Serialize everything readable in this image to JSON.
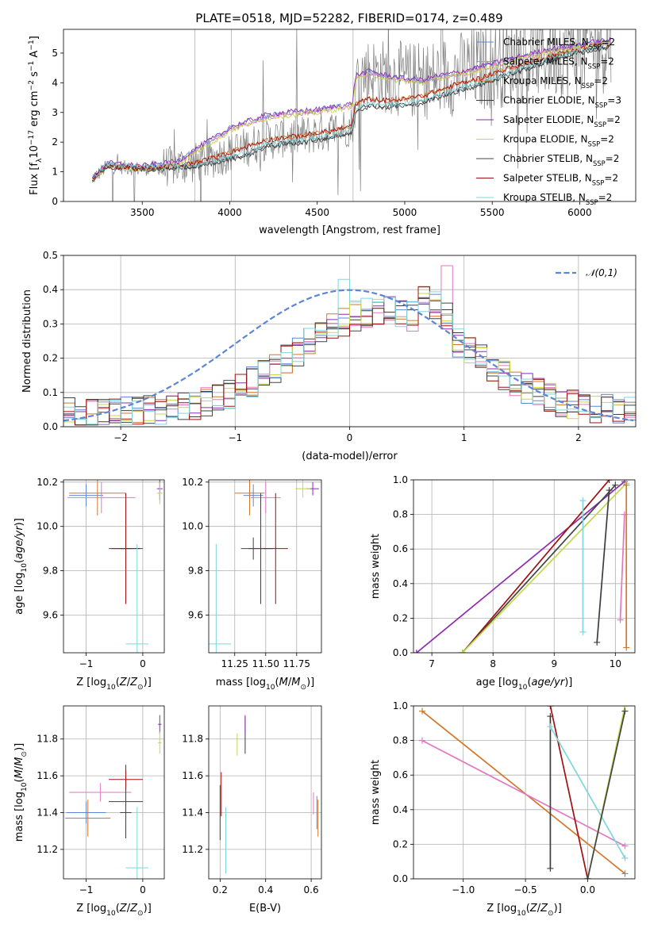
{
  "title": "PLATE=0518, MJD=52282, FIBERID=0174, z=0.489",
  "colors": {
    "chabrier_miles": "#5b86d6",
    "salpeter_miles": "#e377c2",
    "kroupa_miles": "#d2772c",
    "chabrier_elodie": "#3d3d3d",
    "salpeter_elodie": "#8e2bb0",
    "kroupa_elodie": "#c4d84a",
    "chabrier_stelib": "#444444",
    "salpeter_stelib": "#a01010",
    "kroupa_stelib": "#7fd6dc",
    "data": "#7f7f7f",
    "normal": "#5b86d6"
  },
  "chart_data": [
    {
      "id": "spectrum",
      "type": "line",
      "title": "PLATE=0518, MJD=52282, FIBERID=0174, z=0.489",
      "xlabel": "wavelength [Angstrom, rest frame]",
      "ylabel": "Flux [f_λ 10^-17 erg cm^-2 s^-1 A^-1]",
      "xlim": [
        3050,
        6320
      ],
      "ylim": [
        0,
        5.8
      ],
      "xticks": [
        3500,
        4000,
        4500,
        5000,
        5500,
        6000
      ],
      "yticks": [
        0,
        1,
        2,
        3,
        4,
        5
      ],
      "legend_position": "top-right",
      "legend": [
        "Chabrier MILES, N_SSP=2",
        "Salpeter MILES, N_SSP=2",
        "Kroupa MILES, N_SSP=2",
        "Chabrier ELODIE, N_SSP=3",
        "Salpeter ELODIE, N_SSP=2",
        "Kroupa ELODIE, N_SSP=2",
        "Chabrier STELIB, N_SSP=2",
        "Salpeter STELIB, N_SSP=2",
        "Kroupa STELIB, N_SSP=2"
      ],
      "model_high": {
        "x": [
          3215,
          3300,
          3500,
          3700,
          3800,
          3880,
          3960,
          4000,
          4100,
          4200,
          4300,
          4400,
          4500,
          4600,
          4700,
          4720,
          4800,
          4900,
          5000,
          5100,
          5200,
          5300,
          5400,
          5500,
          5600,
          5700,
          5800,
          5900,
          6000,
          6100,
          6180
        ],
        "y": [
          0.75,
          1.25,
          1.15,
          1.3,
          1.7,
          2.0,
          2.25,
          2.45,
          2.65,
          2.85,
          2.95,
          3.0,
          3.05,
          3.15,
          3.25,
          4.2,
          4.35,
          4.2,
          4.1,
          4.05,
          4.2,
          4.3,
          4.45,
          4.6,
          4.75,
          4.9,
          5.05,
          5.15,
          5.25,
          5.35,
          5.4
        ]
      },
      "model_low": {
        "x": [
          3215,
          3300,
          3500,
          3700,
          3800,
          3900,
          4000,
          4100,
          4200,
          4300,
          4400,
          4500,
          4600,
          4700,
          4720,
          4800,
          4900,
          5000,
          5100,
          5200,
          5300,
          5400,
          5500,
          5600,
          5700,
          5800,
          5900,
          6000,
          6100,
          6180
        ],
        "y": [
          0.75,
          1.2,
          1.1,
          1.15,
          1.2,
          1.3,
          1.45,
          1.6,
          1.85,
          1.95,
          2.0,
          2.1,
          2.2,
          2.35,
          3.1,
          3.25,
          3.2,
          3.25,
          3.35,
          3.55,
          3.75,
          3.9,
          4.1,
          4.3,
          4.5,
          4.7,
          4.9,
          5.05,
          5.15,
          5.25
        ]
      },
      "model_mid": {
        "x": [
          3215,
          3300,
          3500,
          3700,
          3800,
          3900,
          4000,
          4100,
          4200,
          4300,
          4400,
          4500,
          4600,
          4700,
          4720,
          4800,
          4900,
          5000,
          5100,
          5200,
          5300,
          5400,
          5500,
          5600,
          5700,
          5800,
          5900,
          6000,
          6100,
          6180
        ],
        "y": [
          0.75,
          1.2,
          1.1,
          1.2,
          1.3,
          1.45,
          1.65,
          1.85,
          2.05,
          2.15,
          2.2,
          2.3,
          2.4,
          2.55,
          3.3,
          3.45,
          3.4,
          3.45,
          3.55,
          3.75,
          3.95,
          4.1,
          4.3,
          4.5,
          4.65,
          4.85,
          5.0,
          5.15,
          5.25,
          5.3
        ]
      }
    },
    {
      "id": "residuals",
      "type": "line",
      "xlabel": "(data-model)/error",
      "ylabel": "Normed distribution",
      "xlim": [
        -2.5,
        2.5
      ],
      "ylim": [
        0,
        0.5
      ],
      "xticks": [
        -2,
        -1,
        0,
        1,
        2
      ],
      "yticks": [
        0.0,
        0.1,
        0.2,
        0.3,
        0.4,
        0.5
      ],
      "legend_position": "top-right",
      "legend": [
        "𝒩(0,1)"
      ],
      "hist_peak": 0.47
    },
    {
      "id": "age_vs_Z",
      "type": "scatter",
      "xlabel": "Z [log10(Z/Z⊙)]",
      "ylabel": "age [log10(age/yr)]",
      "xlim": [
        -1.4,
        0.38
      ],
      "ylim": [
        9.43,
        10.21
      ],
      "xticks": [
        -1,
        0
      ],
      "yticks": [
        9.6,
        9.8,
        10.0,
        10.2
      ],
      "points": [
        {
          "c": "chabrier_miles",
          "x": -1.0,
          "y": 10.14,
          "ex": 0.3,
          "ey": 0.05
        },
        {
          "c": "salpeter_miles",
          "x": -0.73,
          "y": 10.13,
          "ex": 0.6,
          "ey": 0.07
        },
        {
          "c": "kroupa_miles",
          "x": -0.8,
          "y": 10.15,
          "ex": 0.5,
          "ey": 0.1
        },
        {
          "c": "chabrier_elodie",
          "x": -0.3,
          "y": 9.9,
          "ex": 0.3,
          "ey": 0.25
        },
        {
          "c": "salpeter_elodie",
          "x": 0.3,
          "y": 10.17,
          "ex": 0.05,
          "ey": 0.05
        },
        {
          "c": "kroupa_elodie",
          "x": 0.3,
          "y": 10.15,
          "ex": 0.05,
          "ey": 0.05
        },
        {
          "c": "chabrier_stelib",
          "x": -0.3,
          "y": 9.9,
          "ex": 0.1,
          "ey": 0.1
        },
        {
          "c": "salpeter_stelib",
          "x": -0.3,
          "y": 9.9,
          "ex": 0.25,
          "ey": 0.25
        },
        {
          "c": "kroupa_stelib",
          "x": -0.1,
          "y": 9.47,
          "ex": 0.2,
          "ey": 0.45
        }
      ]
    },
    {
      "id": "age_vs_mass",
      "type": "scatter",
      "xlabel": "mass [log10(M/M⊙)]",
      "ylabel": "",
      "xlim": [
        11.04,
        11.95
      ],
      "ylim": [
        9.43,
        10.21
      ],
      "xticks": [
        11.25,
        11.5,
        11.75
      ],
      "yticks": [
        9.6,
        9.8,
        10.0,
        10.2
      ],
      "points": [
        {
          "c": "chabrier_miles",
          "x": 11.4,
          "y": 10.14,
          "ex": 0.08,
          "ey": 0.05
        },
        {
          "c": "salpeter_miles",
          "x": 11.5,
          "y": 10.13,
          "ex": 0.12,
          "ey": 0.07
        },
        {
          "c": "kroupa_miles",
          "x": 11.37,
          "y": 10.15,
          "ex": 0.12,
          "ey": 0.1
        },
        {
          "c": "chabrier_elodie",
          "x": 11.46,
          "y": 9.9,
          "ex": 0.1,
          "ey": 0.25
        },
        {
          "c": "salpeter_elodie",
          "x": 11.88,
          "y": 10.17,
          "ex": 0.05,
          "ey": 0.03
        },
        {
          "c": "kroupa_elodie",
          "x": 11.8,
          "y": 10.17,
          "ex": 0.06,
          "ey": 0.04
        },
        {
          "c": "chabrier_stelib",
          "x": 11.4,
          "y": 9.9,
          "ex": 0.1,
          "ey": 0.05
        },
        {
          "c": "salpeter_stelib",
          "x": 11.58,
          "y": 9.9,
          "ex": 0.1,
          "ey": 0.25
        },
        {
          "c": "kroupa_stelib",
          "x": 11.1,
          "y": 9.47,
          "ex": 0.12,
          "ey": 0.45
        }
      ]
    },
    {
      "id": "weight_vs_age",
      "type": "line",
      "xlabel": "age [log10(age/yr)]",
      "ylabel": "mass weight",
      "xlim": [
        6.7,
        10.32
      ],
      "ylim": [
        0,
        1
      ],
      "xticks": [
        7,
        8,
        9,
        10
      ],
      "yticks": [
        0.0,
        0.2,
        0.4,
        0.6,
        0.8,
        1.0
      ],
      "lines": [
        {
          "c": "salpeter_elodie",
          "x": [
            6.75,
            10.15
          ],
          "y": [
            0.0,
            0.99
          ]
        },
        {
          "c": "salpeter_stelib",
          "x": [
            7.5,
            9.9
          ],
          "y": [
            0.0,
            1.0
          ]
        },
        {
          "c": "chabrier_stelib",
          "x": [
            7.5,
            10.0
          ],
          "y": [
            0.0,
            0.97
          ]
        },
        {
          "c": "kroupa_elodie",
          "x": [
            7.5,
            10.18
          ],
          "y": [
            0.0,
            0.98
          ]
        },
        {
          "c": "chabrier_elodie",
          "x": [
            9.7,
            9.9
          ],
          "y": [
            0.06,
            0.94
          ]
        },
        {
          "c": "kroupa_stelib",
          "x": [
            9.47,
            9.47
          ],
          "y": [
            0.12,
            0.88
          ]
        },
        {
          "c": "salpeter_miles",
          "x": [
            10.08,
            10.15
          ],
          "y": [
            0.19,
            0.8
          ]
        },
        {
          "c": "kroupa_miles",
          "x": [
            10.18,
            10.18
          ],
          "y": [
            0.03,
            0.97
          ]
        }
      ]
    },
    {
      "id": "mass_vs_Z",
      "type": "scatter",
      "xlabel": "Z [log10(Z/Z⊙)]",
      "ylabel": "mass [log10(M/M⊙)]",
      "xlim": [
        -1.4,
        0.38
      ],
      "ylim": [
        11.04,
        11.98
      ],
      "xticks": [
        -1,
        0
      ],
      "yticks": [
        11.2,
        11.4,
        11.6,
        11.8
      ],
      "points": [
        {
          "c": "chabrier_miles",
          "x": -1.0,
          "y": 11.4,
          "ex": 0.35,
          "ey": 0.06
        },
        {
          "c": "salpeter_miles",
          "x": -0.75,
          "y": 11.51,
          "ex": 0.55,
          "ey": 0.05
        },
        {
          "c": "kroupa_miles",
          "x": -0.97,
          "y": 11.37,
          "ex": 0.4,
          "ey": 0.1
        },
        {
          "c": "chabrier_elodie",
          "x": -0.3,
          "y": 11.46,
          "ex": 0.3,
          "ey": 0.2
        },
        {
          "c": "salpeter_elodie",
          "x": 0.3,
          "y": 11.88,
          "ex": 0.03,
          "ey": 0.05
        },
        {
          "c": "kroupa_elodie",
          "x": 0.3,
          "y": 11.78,
          "ex": 0.03,
          "ey": 0.06
        },
        {
          "c": "chabrier_stelib",
          "x": -0.3,
          "y": 11.4,
          "ex": 0.1,
          "ey": 0.05
        },
        {
          "c": "salpeter_stelib",
          "x": -0.3,
          "y": 11.58,
          "ex": 0.3,
          "ey": 0.05
        },
        {
          "c": "kroupa_stelib",
          "x": -0.1,
          "y": 11.1,
          "ex": 0.2,
          "ey": 0.33
        }
      ]
    },
    {
      "id": "mass_vs_ebv",
      "type": "scatter",
      "xlabel": "E(B-V)",
      "ylabel": "",
      "xlim": [
        0.15,
        0.645
      ],
      "ylim": [
        11.04,
        11.98
      ],
      "xticks": [
        0.2,
        0.4,
        0.6
      ],
      "yticks": [
        11.2,
        11.4,
        11.6,
        11.8
      ],
      "points": [
        {
          "c": "chabrier_miles",
          "x": 0.625,
          "y": 11.4,
          "ex": 0.0,
          "ey": 0.09
        },
        {
          "c": "salpeter_miles",
          "x": 0.61,
          "y": 11.45,
          "ex": 0.0,
          "ey": 0.06
        },
        {
          "c": "kroupa_miles",
          "x": 0.63,
          "y": 11.37,
          "ex": 0.0,
          "ey": 0.1
        },
        {
          "c": "chabrier_elodie",
          "x": 0.31,
          "y": 11.82,
          "ex": 0.0,
          "ey": 0.1
        },
        {
          "c": "salpeter_elodie",
          "x": 0.31,
          "y": 11.88,
          "ex": 0.0,
          "ey": 0.05
        },
        {
          "c": "kroupa_elodie",
          "x": 0.275,
          "y": 11.77,
          "ex": 0.0,
          "ey": 0.06
        },
        {
          "c": "chabrier_stelib",
          "x": 0.2,
          "y": 11.4,
          "ex": 0.0,
          "ey": 0.15
        },
        {
          "c": "salpeter_stelib",
          "x": 0.205,
          "y": 11.5,
          "ex": 0.0,
          "ey": 0.12
        },
        {
          "c": "kroupa_stelib",
          "x": 0.225,
          "y": 11.25,
          "ex": 0.0,
          "ey": 0.18
        }
      ]
    },
    {
      "id": "weight_vs_Z",
      "type": "line",
      "xlabel": "Z [log10(Z/Z⊙)]",
      "ylabel": "mass weight",
      "xlim": [
        -1.4,
        0.38
      ],
      "ylim": [
        0,
        1
      ],
      "xticks": [
        -1.0,
        -0.5,
        0.0
      ],
      "yticks": [
        0.0,
        0.2,
        0.4,
        0.6,
        0.8,
        1.0
      ],
      "lines": [
        {
          "c": "kroupa_miles",
          "x": [
            -1.33,
            0.3
          ],
          "y": [
            0.97,
            0.03
          ]
        },
        {
          "c": "salpeter_miles",
          "x": [
            -1.33,
            0.3
          ],
          "y": [
            0.8,
            0.19
          ]
        },
        {
          "c": "chabrier_elodie",
          "x": [
            -0.3,
            -0.3
          ],
          "y": [
            0.06,
            0.94
          ]
        },
        {
          "c": "salpeter_stelib",
          "x": [
            -0.3,
            0.0
          ],
          "y": [
            1.0,
            0.0
          ]
        },
        {
          "c": "kroupa_stelib",
          "x": [
            -0.3,
            0.3
          ],
          "y": [
            0.88,
            0.12
          ]
        },
        {
          "c": "kroupa_elodie",
          "x": [
            0.0,
            0.3
          ],
          "y": [
            0.0,
            1.0
          ]
        },
        {
          "c": "chabrier_stelib",
          "x": [
            0.0,
            0.3
          ],
          "y": [
            0.0,
            0.97
          ]
        }
      ]
    }
  ]
}
